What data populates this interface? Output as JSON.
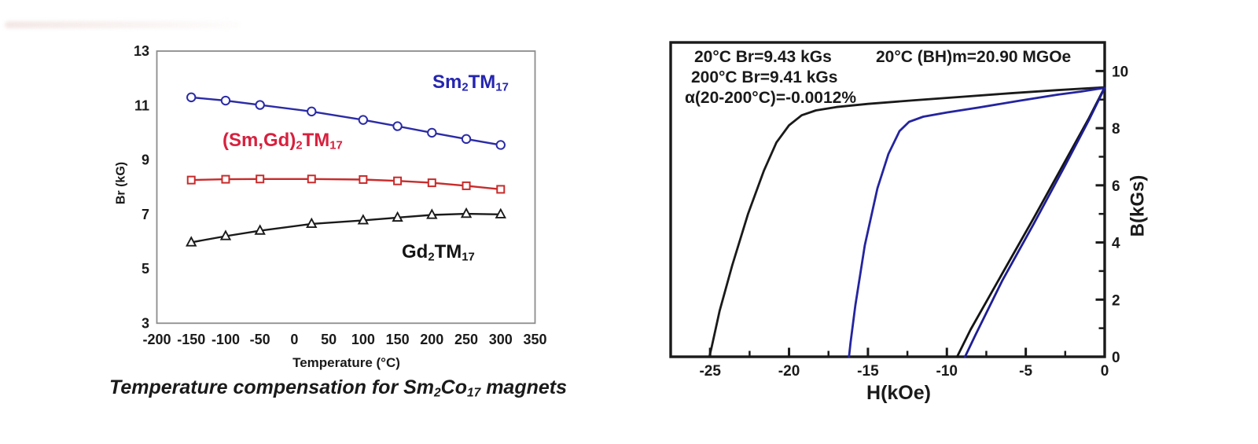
{
  "figure": {
    "background": "#ffffff",
    "left_caption_segments": [
      [
        "Temperature compensation for Sm"
      ],
      [
        "2",
        "sub"
      ],
      [
        "Co"
      ],
      [
        "17",
        "sub"
      ],
      [
        " magnets"
      ]
    ]
  },
  "chart_data": [
    {
      "type": "line",
      "name": "temperature-compensation-chart",
      "title": "Temperature compensation for Sm2Co17 magnets",
      "xlabel": "Temperature (°C)",
      "ylabel": "Br (kG)",
      "xlim": [
        -200,
        350
      ],
      "ylim": [
        3,
        13
      ],
      "xticks": [
        -200,
        -150,
        -100,
        -50,
        0,
        50,
        100,
        150,
        200,
        250,
        300,
        350
      ],
      "yticks": [
        3,
        5,
        7,
        9,
        11,
        13
      ],
      "grid": false,
      "legend_position": "inline-labels",
      "frame_color": "#8c8c8c",
      "series": [
        {
          "name": "Sm2TM17",
          "label_segments": [
            [
              "Sm"
            ],
            [
              "2",
              "sub"
            ],
            [
              "TM"
            ],
            [
              "17",
              "sub"
            ]
          ],
          "color": "#2b2ba6",
          "label_color": "#2525b0",
          "marker": "circle",
          "x": [
            -150,
            -100,
            -50,
            25,
            100,
            150,
            200,
            250,
            300
          ],
          "y": [
            11.3,
            11.18,
            11.02,
            10.78,
            10.47,
            10.24,
            10.0,
            9.77,
            9.55
          ]
        },
        {
          "name": "(Sm,Gd)2TM17",
          "label_segments": [
            [
              "(Sm,Gd)"
            ],
            [
              "2",
              "sub"
            ],
            [
              "TM"
            ],
            [
              "17",
              "sub"
            ]
          ],
          "color": "#c92b2b",
          "label_color": "#d8203e",
          "marker": "square",
          "x": [
            -150,
            -100,
            -50,
            25,
            100,
            150,
            200,
            250,
            300
          ],
          "y": [
            8.26,
            8.29,
            8.3,
            8.3,
            8.28,
            8.23,
            8.16,
            8.05,
            7.92
          ]
        },
        {
          "name": "Gd2TM17",
          "label_segments": [
            [
              "Gd"
            ],
            [
              "2",
              "sub"
            ],
            [
              "TM"
            ],
            [
              "17",
              "sub"
            ]
          ],
          "color": "#1a1a1a",
          "label_color": "#141414",
          "marker": "triangle",
          "x": [
            -150,
            -100,
            -50,
            25,
            100,
            150,
            200,
            250,
            300
          ],
          "y": [
            5.97,
            6.2,
            6.4,
            6.65,
            6.78,
            6.88,
            6.98,
            7.02,
            7.0
          ]
        }
      ]
    },
    {
      "type": "line",
      "name": "demagnetization-curves-chart",
      "xlabel": "H(kOe)",
      "ylabel": "B(kGs)",
      "xlim": [
        -27.5,
        0
      ],
      "ylim": [
        0,
        11
      ],
      "xticks": [
        -25,
        -20,
        -15,
        -10,
        -5,
        0
      ],
      "xminor": [
        -22.5,
        -17.5,
        -12.5,
        -7.5,
        -2.5
      ],
      "yticks": [
        0,
        2,
        4,
        6,
        8,
        10
      ],
      "yminor": [
        1,
        3,
        5,
        7,
        9
      ],
      "grid": false,
      "frame_color": "#1a1a1a",
      "annotations": {
        "line1": "20°C Br=9.43 kGs",
        "line2": "200°C Br=9.41 kGs",
        "line3": "α(20-200°C)=-0.0012%",
        "bh": "20°C (BH)m=20.90 MGOe"
      },
      "series": [
        {
          "name": "20C-intrinsic-curve",
          "color": "#1a1a1a",
          "points": [
            [
              0,
              9.43
            ],
            [
              -3,
              9.33
            ],
            [
              -6,
              9.22
            ],
            [
              -9,
              9.1
            ],
            [
              -12,
              8.98
            ],
            [
              -15,
              8.85
            ],
            [
              -17,
              8.74
            ],
            [
              -18.3,
              8.62
            ],
            [
              -19.2,
              8.45
            ],
            [
              -20,
              8.1
            ],
            [
              -20.8,
              7.5
            ],
            [
              -21.6,
              6.5
            ],
            [
              -22.6,
              5.0
            ],
            [
              -23.6,
              3.2
            ],
            [
              -24.4,
              1.6
            ],
            [
              -24.9,
              0.35
            ],
            [
              -25.05,
              0
            ]
          ]
        },
        {
          "name": "200C-intrinsic-curve",
          "color": "#2424a0",
          "points": [
            [
              0,
              9.41
            ],
            [
              -1.5,
              9.28
            ],
            [
              -3,
              9.17
            ],
            [
              -5.5,
              8.95
            ],
            [
              -8,
              8.72
            ],
            [
              -10,
              8.55
            ],
            [
              -11.5,
              8.4
            ],
            [
              -12.4,
              8.22
            ],
            [
              -13,
              7.9
            ],
            [
              -13.7,
              7.1
            ],
            [
              -14.4,
              5.9
            ],
            [
              -15.2,
              3.9
            ],
            [
              -15.8,
              1.8
            ],
            [
              -16.1,
              0.5
            ],
            [
              -16.2,
              0
            ]
          ]
        },
        {
          "name": "20C-induction-line",
          "color": "#141414",
          "points": [
            [
              0,
              9.43
            ],
            [
              -1,
              8.35
            ],
            [
              -2.5,
              6.85
            ],
            [
              -4.5,
              4.85
            ],
            [
              -6.5,
              2.9
            ],
            [
              -8.5,
              0.95
            ],
            [
              -9.35,
              0
            ]
          ]
        },
        {
          "name": "200C-induction-line",
          "color": "#1e1e96",
          "points": [
            [
              0,
              9.41
            ],
            [
              -1,
              8.28
            ],
            [
              -2.5,
              6.7
            ],
            [
              -4.5,
              4.65
            ],
            [
              -6.5,
              2.65
            ],
            [
              -8.2,
              0.75
            ],
            [
              -8.85,
              0
            ]
          ]
        }
      ]
    }
  ]
}
